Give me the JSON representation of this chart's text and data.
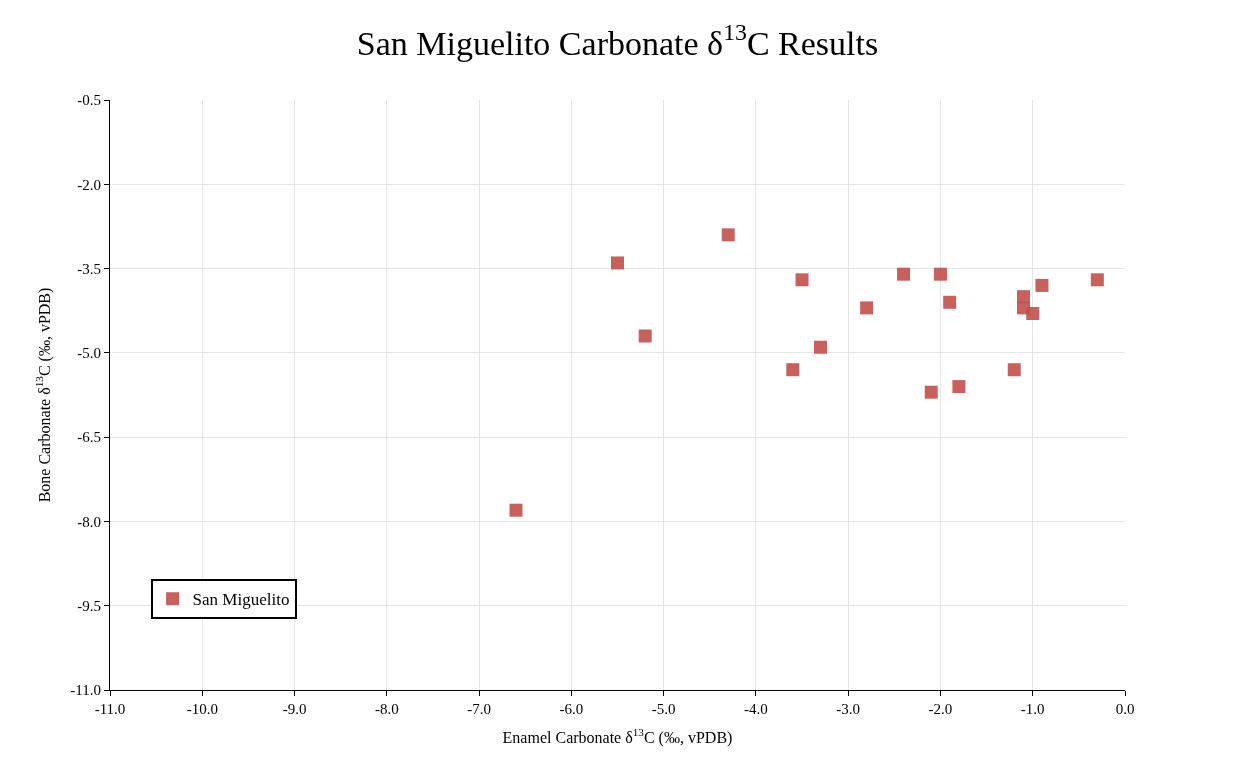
{
  "chart_data": {
    "type": "scatter",
    "title": "San Miguelito Carbonate δ$^{13}$C Results",
    "xlabel": "Enamel Carbonate δ$^{13}$C (‰, vPDB)",
    "ylabel": "Bone Carbonate δ$^{13}$C (‰, vPDB)",
    "series": [
      {
        "name": "San Miguelito",
        "color": "#c0504d",
        "x": [
          -6.6,
          -5.5,
          -5.2,
          -4.3,
          -3.5,
          -3.6,
          -3.3,
          -2.8,
          -2.4,
          -2.0,
          -1.9,
          -2.1,
          -1.8,
          -1.1,
          -1.1,
          -1.0,
          -0.9,
          -1.2,
          -0.3
        ],
        "values": [
          -7.8,
          -3.4,
          -4.7,
          -2.9,
          -3.7,
          -5.3,
          -4.9,
          -4.2,
          -3.6,
          -3.6,
          -4.1,
          -5.7,
          -5.6,
          -4.0,
          -4.2,
          -4.3,
          -3.8,
          -5.3,
          -3.7
        ]
      }
    ],
    "xlim": [
      -11,
      0
    ],
    "xticks": [
      {
        "value": -11,
        "label": "-11.0"
      },
      {
        "value": -10,
        "label": "-10.0"
      },
      {
        "value": -9,
        "label": "-9.0"
      },
      {
        "value": -8,
        "label": "-8.0"
      },
      {
        "value": -7,
        "label": "-7.0"
      },
      {
        "value": -6,
        "label": "-6.0"
      },
      {
        "value": -5,
        "label": "-5.0"
      },
      {
        "value": -4,
        "label": "-4.0"
      },
      {
        "value": -3,
        "label": "-3.0"
      },
      {
        "value": -2,
        "label": "-2.0"
      },
      {
        "value": -1,
        "label": "-1.0"
      },
      {
        "value": 0,
        "label": "0.0"
      }
    ],
    "ylim": [
      -11,
      -0.5
    ],
    "yticks": [
      {
        "value": -11,
        "label": "-11.0"
      },
      -9.5,
      {
        "value": -8,
        "label": "-8.0"
      },
      -6.5,
      {
        "value": -5,
        "label": "-5.0"
      },
      -3.5,
      {
        "value": -2,
        "label": "-2.0"
      },
      -0.5
    ],
    "grid": true,
    "legend": "bottom left",
    "marker": "square"
  }
}
